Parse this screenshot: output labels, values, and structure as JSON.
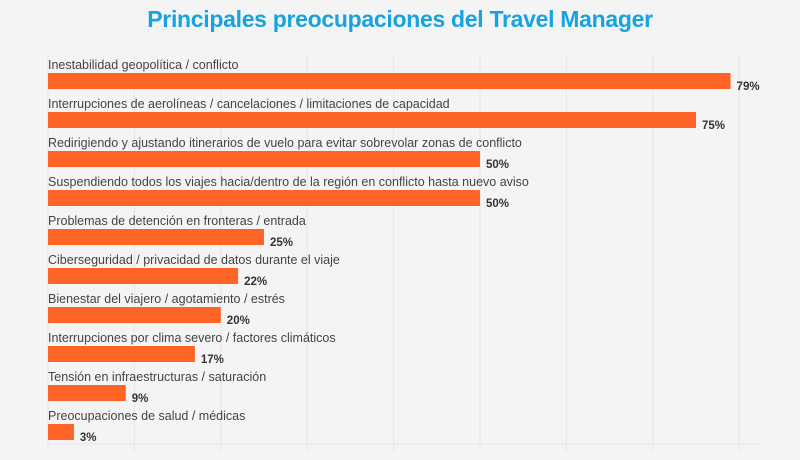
{
  "chart_data": {
    "type": "bar",
    "orientation": "horizontal",
    "title": "Principales preocupaciones del Travel Manager",
    "categories": [
      "Inestabilidad geopolítica / conflicto",
      "Interrupciones de aerolíneas / cancelaciones / limitaciones de capacidad",
      "Redirigiendo y ajustando itinerarios de vuelo para evitar sobrevolar zonas de conflicto",
      "Suspendiendo todos los viajes hacia/dentro de la región en conflicto hasta nuevo aviso",
      "Problemas de detención en fronteras / entrada",
      "Ciberseguridad / privacidad de datos durante el viaje",
      "Bienestar del viajero / agotamiento / estrés",
      "Interrupciones por clima severo / factores climáticos",
      "Tensión en infraestructuras / saturación",
      "Preocupaciones de salud / médicas"
    ],
    "values": [
      79,
      75,
      50,
      50,
      25,
      22,
      20,
      17,
      9,
      3
    ],
    "value_labels": [
      "79%",
      "75%",
      "50%",
      "50%",
      "25%",
      "22%",
      "20%",
      "17%",
      "9%",
      "3%"
    ],
    "xlim": [
      0,
      82
    ],
    "grid": true,
    "bar_color": "#ff6326",
    "title_color": "#16a3df"
  }
}
